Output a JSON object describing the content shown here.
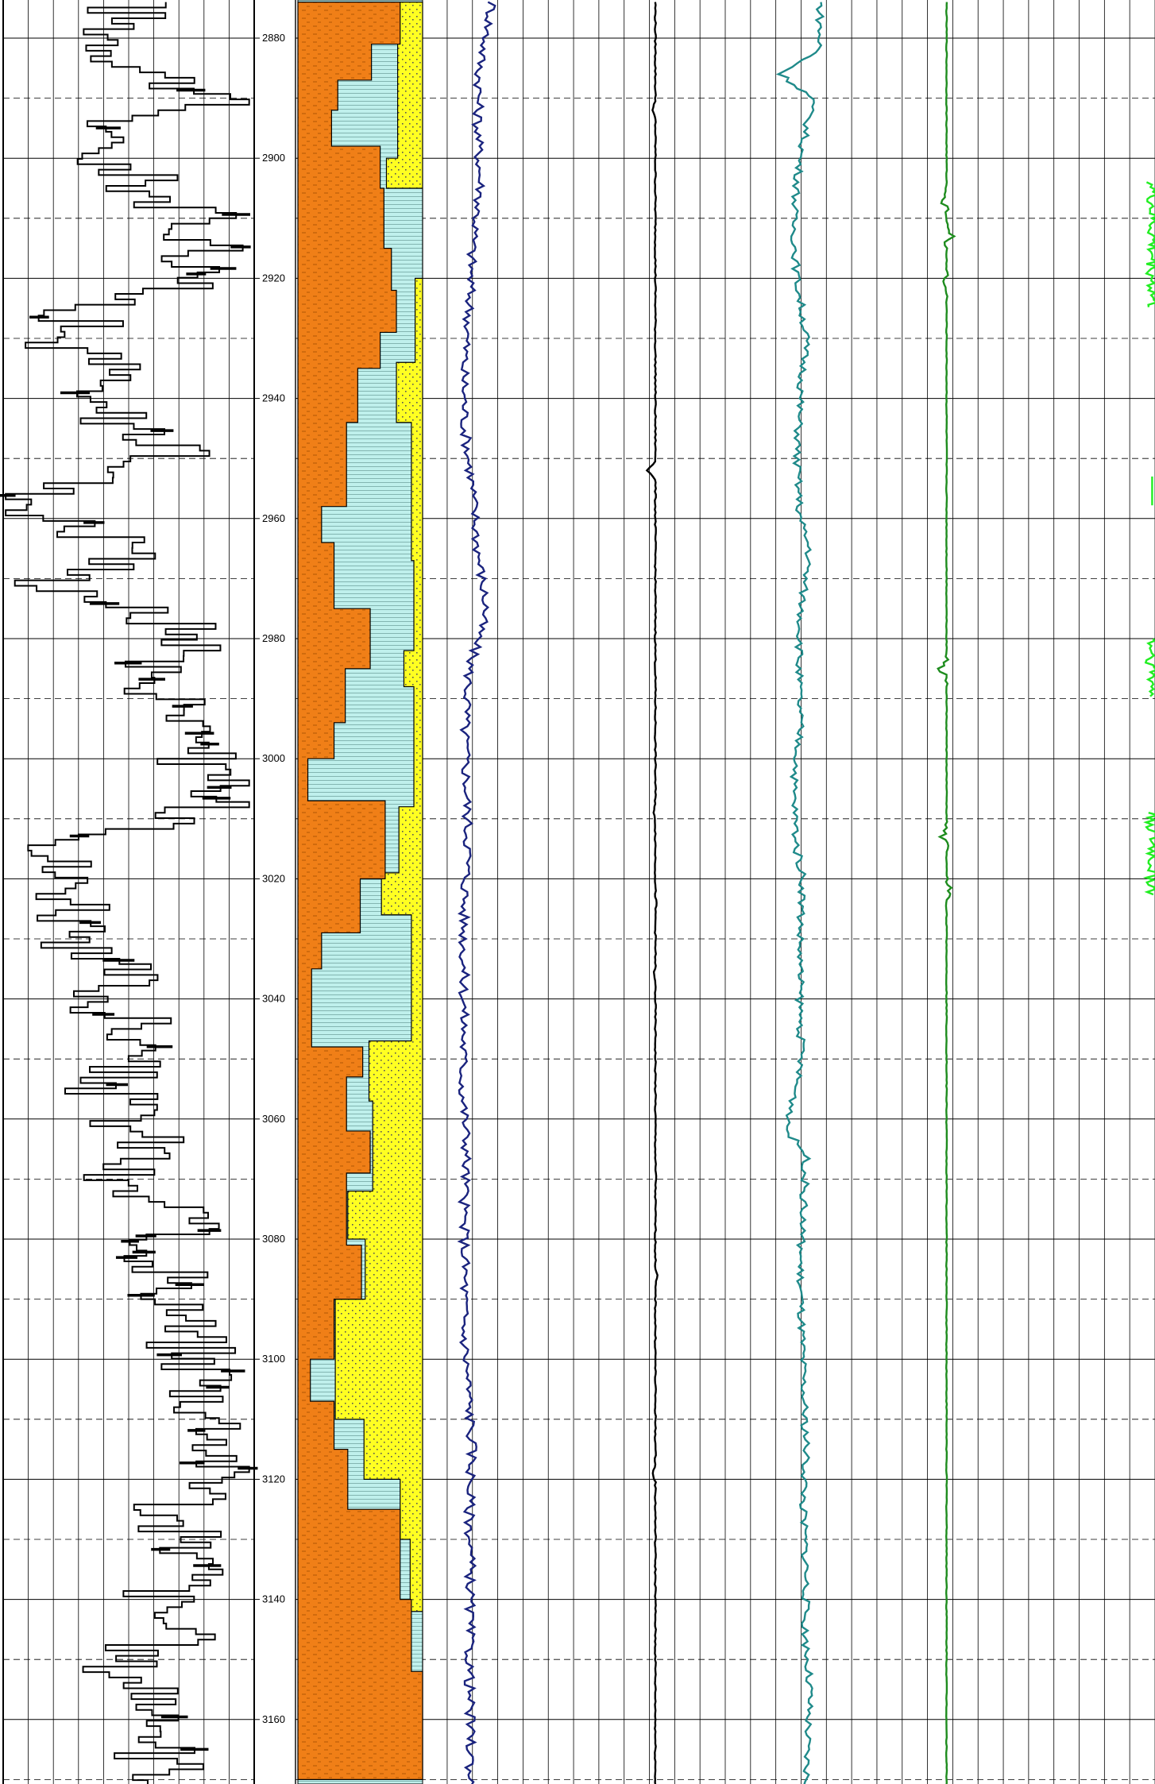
{
  "chart_data": {
    "type": "line",
    "title": "",
    "depth_axis": {
      "range": [
        2874,
        3170
      ],
      "major_step": 20,
      "minor_step": 10,
      "tick_labels": [
        "2880",
        "2900",
        "2920",
        "2940",
        "2960",
        "2980",
        "3000",
        "3020",
        "3040",
        "3060",
        "3080",
        "3100",
        "3120",
        "3140",
        "3160"
      ]
    },
    "lithology": {
      "legend": [
        "shale",
        "siltstone",
        "sandstone"
      ],
      "colors": {
        "shale": "#f07f17",
        "siltstone": "#bff0ec",
        "sandstone": "#ffff22"
      },
      "shale_fraction": [
        [
          2874,
          0.82
        ],
        [
          2881,
          0.59
        ],
        [
          2887,
          0.32
        ],
        [
          2892,
          0.27
        ],
        [
          2898,
          0.66
        ],
        [
          2905,
          0.69
        ],
        [
          2915,
          0.75
        ],
        [
          2922,
          0.79
        ],
        [
          2929,
          0.66
        ],
        [
          2935,
          0.48
        ],
        [
          2944,
          0.39
        ],
        [
          2958,
          0.19
        ],
        [
          2964,
          0.29
        ],
        [
          2975,
          0.58
        ],
        [
          2985,
          0.38
        ],
        [
          2994,
          0.29
        ],
        [
          3000,
          0.08
        ],
        [
          3007,
          0.7
        ],
        [
          3020,
          0.5
        ],
        [
          3029,
          0.19
        ],
        [
          3035,
          0.11
        ],
        [
          3048,
          0.52
        ],
        [
          3053,
          0.39
        ],
        [
          3062,
          0.58
        ],
        [
          3069,
          0.39
        ],
        [
          3081,
          0.51
        ],
        [
          3090,
          0.29
        ],
        [
          3100,
          0.1
        ],
        [
          3107,
          0.29
        ],
        [
          3115,
          0.4
        ],
        [
          3125,
          0.82
        ],
        [
          3140,
          0.91
        ],
        [
          3152,
          1.0
        ]
      ],
      "sand_fraction": [
        [
          2874,
          0.2
        ],
        [
          2881,
          0.2
        ],
        [
          2900,
          0.29
        ],
        [
          2905,
          0.0
        ],
        [
          2920,
          0.06
        ],
        [
          2934,
          0.21
        ],
        [
          2944,
          0.09
        ],
        [
          2967,
          0.07
        ],
        [
          2982,
          0.15
        ],
        [
          2988,
          0.07
        ],
        [
          3008,
          0.19
        ],
        [
          3019,
          0.33
        ],
        [
          3026,
          0.09
        ],
        [
          3047,
          0.43
        ],
        [
          3057,
          0.4
        ],
        [
          3072,
          0.6
        ],
        [
          3080,
          0.46
        ],
        [
          3090,
          0.7
        ],
        [
          3110,
          0.47
        ],
        [
          3120,
          0.18
        ],
        [
          3130,
          0.1
        ],
        [
          3142,
          0.0
        ]
      ]
    },
    "series": [
      {
        "name": "",
        "color": "#000000",
        "style": "stepped",
        "values": [
          [
            2875,
            0.5
          ],
          [
            2880,
            0.45
          ],
          [
            2885,
            0.58
          ],
          [
            2890,
            0.9
          ],
          [
            2895,
            0.3
          ],
          [
            2900,
            0.42
          ],
          [
            2905,
            0.6
          ],
          [
            2910,
            0.78
          ],
          [
            2915,
            0.85
          ],
          [
            2920,
            0.72
          ],
          [
            2925,
            0.35
          ],
          [
            2930,
            0.22
          ],
          [
            2935,
            0.45
          ],
          [
            2940,
            0.3
          ],
          [
            2945,
            0.6
          ],
          [
            2950,
            0.65
          ],
          [
            2955,
            0.15
          ],
          [
            2960,
            0.2
          ],
          [
            2965,
            0.6
          ],
          [
            2970,
            0.2
          ],
          [
            2975,
            0.58
          ],
          [
            2980,
            0.8
          ],
          [
            2985,
            0.62
          ],
          [
            2990,
            0.7
          ],
          [
            2995,
            0.82
          ],
          [
            3000,
            0.76
          ],
          [
            3005,
            0.85
          ],
          [
            3010,
            0.78
          ],
          [
            3015,
            0.2
          ],
          [
            3020,
            0.25
          ],
          [
            3025,
            0.35
          ],
          [
            3030,
            0.15
          ],
          [
            3035,
            0.5
          ],
          [
            3040,
            0.4
          ],
          [
            3045,
            0.55
          ],
          [
            3050,
            0.45
          ],
          [
            3055,
            0.42
          ],
          [
            3060,
            0.5
          ],
          [
            3065,
            0.6
          ],
          [
            3070,
            0.38
          ],
          [
            3075,
            0.72
          ],
          [
            3080,
            0.62
          ],
          [
            3085,
            0.7
          ],
          [
            3090,
            0.74
          ],
          [
            3095,
            0.7
          ],
          [
            3100,
            0.8
          ],
          [
            3105,
            0.82
          ],
          [
            3110,
            0.86
          ],
          [
            3115,
            0.88
          ],
          [
            3120,
            0.92
          ],
          [
            3125,
            0.65
          ],
          [
            3130,
            0.7
          ],
          [
            3135,
            0.78
          ],
          [
            3140,
            0.6
          ],
          [
            3145,
            0.7
          ],
          [
            3150,
            0.45
          ],
          [
            3155,
            0.62
          ],
          [
            3160,
            0.68
          ],
          [
            3165,
            0.62
          ],
          [
            3170,
            0.7
          ]
        ]
      },
      {
        "name": "",
        "color": "#1a237e",
        "style": "wiggle",
        "values": [
          [
            2875,
            0.7
          ],
          [
            2885,
            0.48
          ],
          [
            2895,
            0.45
          ],
          [
            2905,
            0.5
          ],
          [
            2915,
            0.35
          ],
          [
            2925,
            0.3
          ],
          [
            2935,
            0.2
          ],
          [
            2945,
            0.22
          ],
          [
            2955,
            0.35
          ],
          [
            2965,
            0.45
          ],
          [
            2975,
            0.6
          ],
          [
            2985,
            0.3
          ],
          [
            2995,
            0.22
          ],
          [
            3005,
            0.25
          ],
          [
            3015,
            0.28
          ],
          [
            3025,
            0.2
          ],
          [
            3035,
            0.2
          ],
          [
            3045,
            0.2
          ],
          [
            3055,
            0.18
          ],
          [
            3065,
            0.25
          ],
          [
            3075,
            0.2
          ],
          [
            3085,
            0.22
          ],
          [
            3095,
            0.2
          ],
          [
            3105,
            0.28
          ],
          [
            3115,
            0.35
          ],
          [
            3125,
            0.3
          ],
          [
            3135,
            0.32
          ],
          [
            3145,
            0.3
          ],
          [
            3155,
            0.3
          ],
          [
            3165,
            0.32
          ]
        ]
      },
      {
        "name": "",
        "color": "#000000",
        "style": "baseline",
        "baseline": 0.7,
        "excursions": [
          [
            2892,
            -0.08
          ],
          [
            2952,
            -0.2
          ],
          [
            3009,
            -0.05
          ],
          [
            3024,
            0.02
          ],
          [
            3036,
            -0.04
          ],
          [
            3070,
            0.02
          ],
          [
            3086,
            0.05
          ],
          [
            3119,
            -0.07
          ]
        ]
      },
      {
        "name": "",
        "color": "#1f8a8a",
        "style": "wiggle",
        "values": [
          [
            2875,
            0.72
          ],
          [
            2882,
            0.7
          ],
          [
            2886,
            0.1
          ],
          [
            2890,
            0.6
          ],
          [
            2900,
            0.4
          ],
          [
            2910,
            0.3
          ],
          [
            2920,
            0.35
          ],
          [
            2930,
            0.5
          ],
          [
            2940,
            0.4
          ],
          [
            2950,
            0.35
          ],
          [
            2960,
            0.4
          ],
          [
            2965,
            0.55
          ],
          [
            2975,
            0.42
          ],
          [
            2985,
            0.38
          ],
          [
            2995,
            0.4
          ],
          [
            3005,
            0.3
          ],
          [
            3015,
            0.35
          ],
          [
            3020,
            0.45
          ],
          [
            3030,
            0.4
          ],
          [
            3040,
            0.4
          ],
          [
            3050,
            0.42
          ],
          [
            3062,
            0.2
          ],
          [
            3066,
            0.5
          ],
          [
            3075,
            0.45
          ],
          [
            3085,
            0.4
          ],
          [
            3095,
            0.42
          ],
          [
            3105,
            0.45
          ],
          [
            3115,
            0.5
          ],
          [
            3125,
            0.45
          ],
          [
            3135,
            0.5
          ],
          [
            3145,
            0.48
          ],
          [
            3155,
            0.55
          ],
          [
            3165,
            0.5
          ]
        ]
      },
      {
        "name": "",
        "color": "#1e8c1e",
        "style": "baseline",
        "baseline": 0.72,
        "excursions": [
          [
            2907,
            -0.2
          ],
          [
            2913,
            0.15
          ],
          [
            2921,
            -0.15
          ],
          [
            2985,
            -0.25
          ],
          [
            3013,
            -0.2
          ],
          [
            3022,
            0.15
          ]
        ]
      },
      {
        "name": "",
        "color": "#22ee22",
        "style": "segments",
        "baseline": 0.9,
        "segments": [
          [
            2904,
            2925
          ],
          [
            2953,
            2958
          ],
          [
            2980,
            2990
          ],
          [
            3009,
            3023
          ]
        ]
      }
    ]
  }
}
